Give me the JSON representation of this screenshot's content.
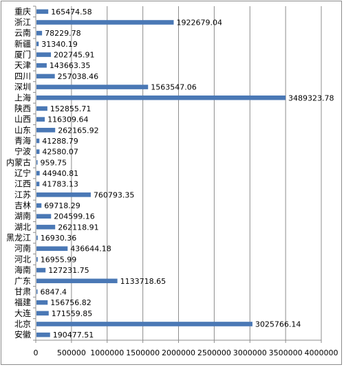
{
  "chart_data": {
    "type": "bar",
    "orientation": "horizontal",
    "categories": [
      "重庆",
      "浙江",
      "云南",
      "新疆",
      "厦门",
      "天津",
      "四川",
      "深圳",
      "上海",
      "陕西",
      "山西",
      "山东",
      "青海",
      "宁波",
      "内蒙古",
      "辽宁",
      "江西",
      "江苏",
      "吉林",
      "湖南",
      "湖北",
      "黑龙江",
      "河南",
      "河北",
      "海南",
      "广东",
      "甘肃",
      "福建",
      "大连",
      "北京",
      "安徽"
    ],
    "values": [
      165474.58,
      1922679.04,
      78229.78,
      31340.19,
      202745.91,
      143663.35,
      257038.46,
      1563547.06,
      3489323.78,
      152855.71,
      116309.64,
      262165.92,
      41288.79,
      42580.07,
      959.75,
      44940.81,
      41783.13,
      760793.35,
      69718.29,
      204599.16,
      262118.91,
      16930.36,
      436644.18,
      16955.99,
      127231.75,
      1133718.65,
      6847.4,
      156756.82,
      171559.85,
      3025766.14,
      190477.51
    ],
    "value_labels": [
      "165474.58",
      "1922679.04",
      "78229.78",
      "31340.19",
      "202745.91",
      "143663.35",
      "257038.46",
      "1563547.06",
      "3489323.78",
      "152855.71",
      "116309.64",
      "262165.92",
      "41288.79",
      "42580.07",
      "959.75",
      "44940.81",
      "41783.13",
      "760793.35",
      "69718.29",
      "204599.16",
      "262118.91",
      "16930.36",
      "436644.18",
      "16955.99",
      "127231.75",
      "1133718.65",
      "6847.4",
      "156756.82",
      "171559.85",
      "3025766.14",
      "190477.51"
    ],
    "xlim": [
      0,
      4000000
    ],
    "x_ticks": [
      "0",
      "500000",
      "1000000",
      "1500000",
      "2000000",
      "2500000",
      "3000000",
      "3500000",
      "4000000"
    ],
    "x_tick_values": [
      0,
      500000,
      1000000,
      1500000,
      2000000,
      2500000,
      3000000,
      3500000,
      4000000
    ],
    "title": "",
    "xlabel": "",
    "ylabel": "",
    "grid": "vertical",
    "legend": "none",
    "bar_color": "#4a78b5",
    "grid_color": "#8c8c8c",
    "axis_color": "#8c8c8c"
  }
}
